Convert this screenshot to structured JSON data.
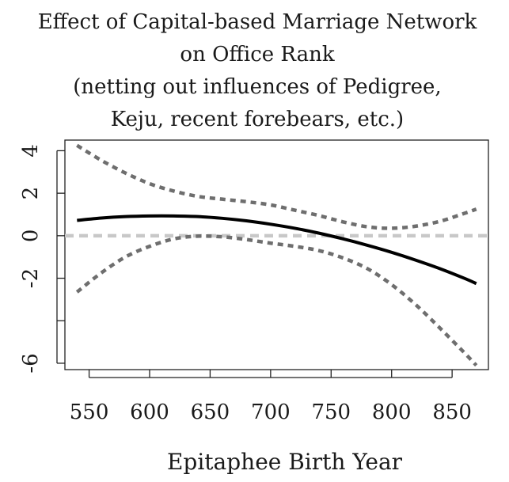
{
  "chart_data": {
    "type": "line",
    "title": [
      "Effect of Capital-based Marriage Network",
      "on Office Rank",
      "(netting out influences of Pedigree,",
      "Keju, recent forebears, etc.)"
    ],
    "xlabel": "Epitaphee Birth Year",
    "ylabel": "",
    "xlim": [
      530,
      880
    ],
    "ylim": [
      -6.3,
      4.5
    ],
    "x_ticks": [
      550,
      600,
      650,
      700,
      750,
      800,
      850
    ],
    "y_ticks": [
      4,
      2,
      0,
      -2,
      -6
    ],
    "grid": false,
    "reference_line": {
      "y": 0,
      "style": "dashed",
      "color": "#c8c8c8"
    },
    "series": [
      {
        "role": "estimate",
        "style": "solid",
        "color": "#000000",
        "x": [
          540,
          560,
          580,
          600,
          620,
          640,
          660,
          680,
          700,
          720,
          740,
          760,
          780,
          800,
          820,
          840,
          860,
          870
        ],
        "y": [
          0.72,
          0.83,
          0.9,
          0.93,
          0.93,
          0.9,
          0.82,
          0.7,
          0.54,
          0.35,
          0.12,
          -0.15,
          -0.45,
          -0.78,
          -1.15,
          -1.55,
          -2.0,
          -2.25
        ]
      },
      {
        "role": "upper-band",
        "style": "dotted",
        "color": "#6e6e6e",
        "x": [
          540,
          560,
          580,
          600,
          620,
          640,
          660,
          680,
          700,
          720,
          740,
          760,
          780,
          800,
          820,
          840,
          860,
          870
        ],
        "y": [
          4.25,
          3.55,
          2.95,
          2.45,
          2.1,
          1.85,
          1.72,
          1.6,
          1.45,
          1.2,
          0.95,
          0.65,
          0.42,
          0.35,
          0.45,
          0.68,
          1.05,
          1.25
        ]
      },
      {
        "role": "lower-band",
        "style": "dotted",
        "color": "#6e6e6e",
        "x": [
          540,
          560,
          580,
          600,
          620,
          640,
          660,
          680,
          700,
          720,
          740,
          760,
          780,
          800,
          820,
          840,
          860,
          870
        ],
        "y": [
          -2.65,
          -1.75,
          -1.0,
          -0.5,
          -0.15,
          -0.02,
          -0.05,
          -0.18,
          -0.35,
          -0.5,
          -0.7,
          -1.05,
          -1.55,
          -2.3,
          -3.25,
          -4.35,
          -5.5,
          -6.1
        ]
      }
    ]
  }
}
